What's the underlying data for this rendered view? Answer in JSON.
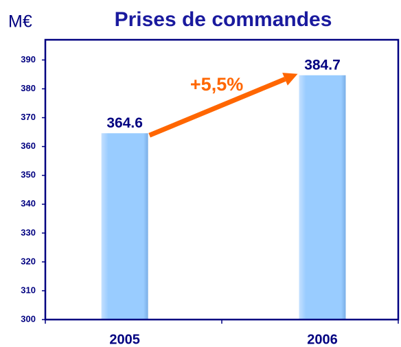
{
  "chart_data": {
    "type": "bar",
    "title": "Prises de commandes",
    "y_label": "M€",
    "categories": [
      "2005",
      "2006"
    ],
    "values": [
      364.6,
      384.7
    ],
    "color": "#99ccff",
    "annotation": "+5,5%",
    "annotation_color": "#ff6600",
    "ylim": [
      300,
      397
    ],
    "yticks": [
      300,
      310,
      320,
      330,
      340,
      350,
      360,
      370,
      380,
      390
    ],
    "grid": false
  }
}
